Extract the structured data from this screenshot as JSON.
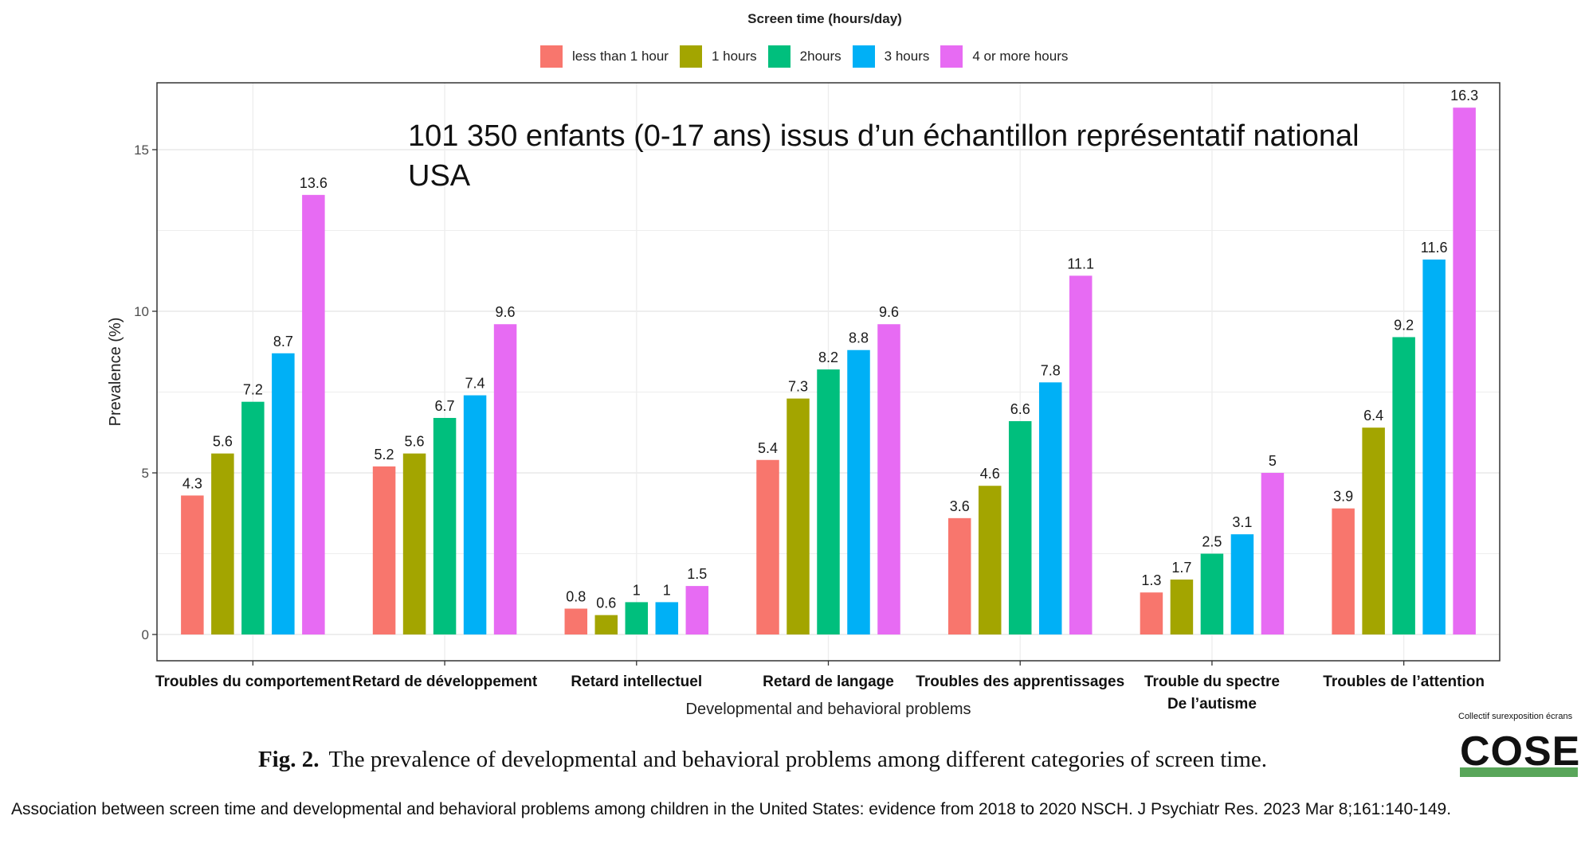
{
  "legend": {
    "title": "Screen time (hours/day)",
    "items": [
      {
        "label": "less than 1 hour",
        "color": "#F8766D"
      },
      {
        "label": "1 hours",
        "color": "#A3A500"
      },
      {
        "label": "2hours",
        "color": "#00BF7D"
      },
      {
        "label": "3 hours",
        "color": "#00B0F6"
      },
      {
        "label": "4 or more hours",
        "color": "#E76BF3"
      }
    ]
  },
  "annotation": {
    "line1": "101 350 enfants (0-17 ans) issus d’un échantillon représentatif national",
    "line2": "USA"
  },
  "chart_data": {
    "type": "bar",
    "xlabel": "Developmental and behavioral problems",
    "ylabel": "Prevalence (%)",
    "ylim": [
      0,
      17.2
    ],
    "yticks": [
      0,
      5,
      10,
      15
    ],
    "grid": true,
    "legend_position": "top",
    "categories": [
      [
        "Troubles du comportement"
      ],
      [
        "Retard de développement"
      ],
      [
        "Retard intellectuel"
      ],
      [
        "Retard de langage"
      ],
      [
        "Troubles des apprentissages"
      ],
      [
        "Trouble du spectre",
        "De l’autisme"
      ],
      [
        "Troubles de l’attention"
      ]
    ],
    "series": [
      {
        "name": "less than 1 hour",
        "color": "#F8766D",
        "values": [
          4.3,
          5.2,
          0.8,
          5.4,
          3.6,
          1.3,
          3.9
        ],
        "labels": [
          "4.3",
          "5.2",
          "0.8",
          "5.4",
          "3.6",
          "1.3",
          "3.9"
        ]
      },
      {
        "name": "1 hours",
        "color": "#A3A500",
        "values": [
          5.6,
          5.6,
          0.6,
          7.3,
          4.6,
          1.7,
          6.4
        ],
        "labels": [
          "5.6",
          "5.6",
          "0.6",
          "7.3",
          "4.6",
          "1.7",
          "6.4"
        ]
      },
      {
        "name": "2hours",
        "color": "#00BF7D",
        "values": [
          7.2,
          6.7,
          1,
          8.2,
          6.6,
          2.5,
          9.2
        ],
        "labels": [
          "7.2",
          "6.7",
          "1",
          "8.2",
          "6.6",
          "2.5",
          "9.2"
        ]
      },
      {
        "name": "3 hours",
        "color": "#00B0F6",
        "values": [
          8.7,
          7.4,
          1,
          8.8,
          7.8,
          3.1,
          11.6
        ],
        "labels": [
          "8.7",
          "7.4",
          "1",
          "8.8",
          "7.8",
          "3.1",
          "11.6"
        ]
      },
      {
        "name": "4 or more hours",
        "color": "#E76BF3",
        "values": [
          13.6,
          9.6,
          1.5,
          9.6,
          11.1,
          5,
          16.3
        ],
        "labels": [
          "13.6",
          "9.6",
          "1.5",
          "9.6",
          "11.1",
          "5",
          "16.3"
        ]
      }
    ]
  },
  "caption": {
    "fig": "Fig. 2.",
    "text": "The prevalence of developmental and behavioral problems among different categories of screen time."
  },
  "source": "Association between screen time and developmental and behavioral problems among children in the United States: evidence from 2018 to 2020 NSCH. J Psychiatr Res. 2023 Mar 8;161:140-149.",
  "logo": {
    "tagline": "Collectif surexposition écrans",
    "name": "COSE"
  }
}
